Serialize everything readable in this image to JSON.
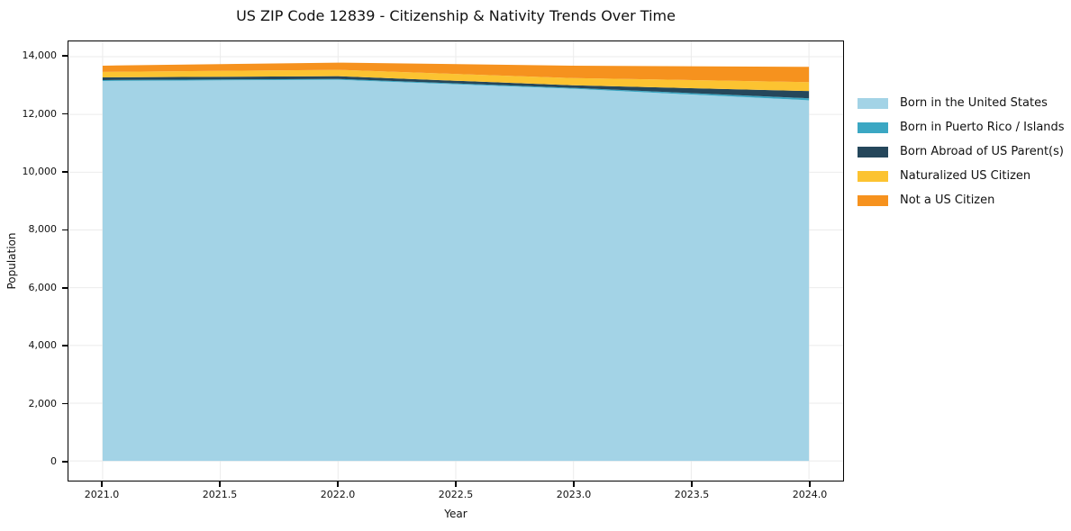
{
  "title": "US ZIP Code 12839 - Citizenship & Nativity Trends Over Time",
  "chart_data": {
    "type": "area",
    "stacked": true,
    "title": "US ZIP Code 12839 - Citizenship & Nativity Trends Over Time",
    "xlabel": "Year",
    "ylabel": "Population",
    "x": [
      2021,
      2022,
      2023,
      2024
    ],
    "series": [
      {
        "name": "Born in the United States",
        "color": "#a3d3e6",
        "values": [
          13160,
          13200,
          12890,
          12490
        ]
      },
      {
        "name": "Born in Puerto Rico / Islands",
        "color": "#3ba7c3",
        "values": [
          30,
          30,
          30,
          70
        ]
      },
      {
        "name": "Born Abroad of US Parent(s)",
        "color": "#25475b",
        "values": [
          95,
          95,
          90,
          250
        ]
      },
      {
        "name": "Naturalized US Citizen",
        "color": "#fcc331",
        "values": [
          190,
          220,
          250,
          310
        ]
      },
      {
        "name": "Not a US Citizen",
        "color": "#f6921e",
        "values": [
          215,
          250,
          430,
          530
        ]
      }
    ],
    "xlim": [
      2020.855,
      2024.145
    ],
    "ylim": [
      -680,
      14530
    ],
    "x_ticks": [
      2021.0,
      2021.5,
      2022.0,
      2022.5,
      2023.0,
      2023.5,
      2024.0
    ],
    "x_tick_labels": [
      "2021.0",
      "2021.5",
      "2022.0",
      "2022.5",
      "2023.0",
      "2023.5",
      "2024.0"
    ],
    "y_ticks": [
      0,
      2000,
      4000,
      6000,
      8000,
      10000,
      12000,
      14000
    ],
    "y_tick_labels": [
      "0",
      "2,000",
      "4,000",
      "6,000",
      "8,000",
      "10,000",
      "12,000",
      "14,000"
    ],
    "grid": true,
    "grid_color": "#ebebeb",
    "legend_position": "right-outside"
  }
}
